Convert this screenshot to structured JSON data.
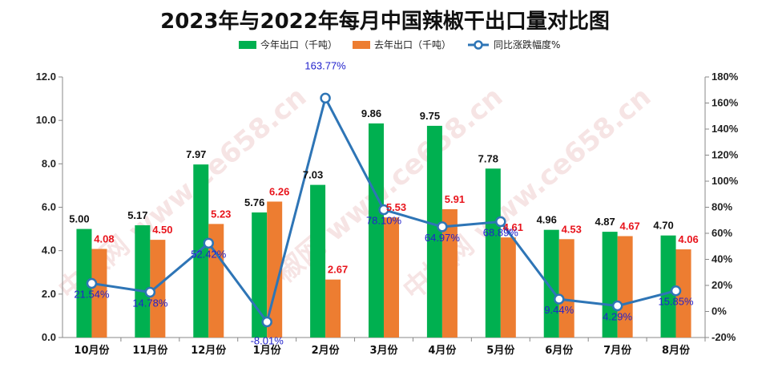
{
  "chart_data": {
    "type": "bar",
    "title": "2023年与2022年每月中国辣椒干出口量对比图",
    "categories": [
      "10月份",
      "11月份",
      "12月份",
      "1月份",
      "2月份",
      "3月份",
      "4月份",
      "5月份",
      "6月份",
      "7月份",
      "8月份"
    ],
    "series": [
      {
        "name": "今年出口（千吨）",
        "type": "bar",
        "axis": "left",
        "color": "#00b050",
        "values": [
          5.0,
          5.17,
          7.97,
          5.76,
          7.03,
          9.86,
          9.75,
          7.78,
          4.96,
          4.87,
          4.7
        ],
        "labels": [
          "5.00",
          "5.17",
          "7.97",
          "5.76",
          "7.03",
          "9.86",
          "9.75",
          "7.78",
          "4.96",
          "4.87",
          "4.70"
        ]
      },
      {
        "name": "去年出口（千吨）",
        "type": "bar",
        "axis": "left",
        "color": "#ed7d31",
        "values": [
          4.08,
          4.5,
          5.23,
          6.26,
          2.67,
          5.53,
          5.91,
          4.61,
          4.53,
          4.67,
          4.06
        ],
        "labels": [
          "4.08",
          "4.50",
          "5.23",
          "6.26",
          "2.67",
          "5.53",
          "5.91",
          "4.61",
          "4.53",
          "4.67",
          "4.06"
        ]
      },
      {
        "name": "同比涨跌幅度%",
        "type": "line",
        "axis": "right",
        "color": "#2e75b6",
        "values": [
          21.54,
          14.78,
          52.42,
          -8.01,
          163.77,
          78.1,
          64.97,
          68.89,
          9.44,
          4.29,
          15.85
        ],
        "labels": [
          "21.54%",
          "14.78%",
          "52.42%",
          "-8.01%",
          "163.77%",
          "78.10%",
          "64.97%",
          "68.89%",
          "9.44%",
          "4.29%",
          "15.85%"
        ]
      }
    ],
    "y_left": {
      "range": [
        0,
        12
      ],
      "ticks": [
        "0.0",
        "2.0",
        "4.0",
        "6.0",
        "8.0",
        "10.0",
        "12.0"
      ]
    },
    "y_right": {
      "range": [
        -20,
        180
      ],
      "ticks": [
        "-20%",
        "0%",
        "20%",
        "40%",
        "60%",
        "80%",
        "100%",
        "120%",
        "140%",
        "160%",
        "180%"
      ]
    },
    "grid": false,
    "legend_position": "top",
    "watermark": "中椒网 www.ce658.cn"
  }
}
